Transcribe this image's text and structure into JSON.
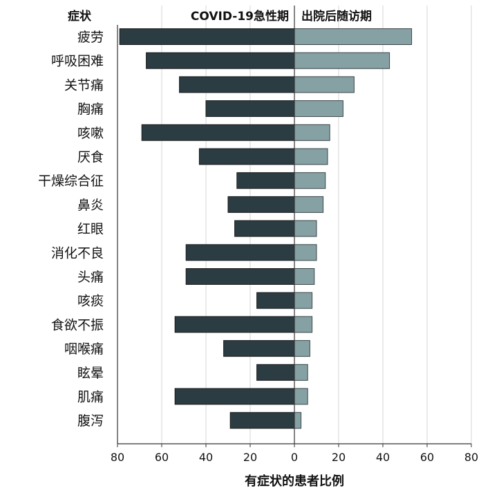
{
  "chart_data": {
    "type": "bar",
    "orientation": "horizontal-diverging",
    "category_header": "症状",
    "xlabel": "有症状的患者比例",
    "xlim": [
      -80,
      80
    ],
    "xticks": [
      -80,
      -60,
      -40,
      -20,
      0,
      20,
      40,
      60,
      80
    ],
    "xtick_labels": [
      "80",
      "60",
      "40",
      "20",
      "0",
      "20",
      "40",
      "60",
      "80"
    ],
    "grid": "vertical",
    "categories": [
      "疲劳",
      "呼吸困难",
      "关节痛",
      "胸痛",
      "咳嗽",
      "厌食",
      "干燥综合征",
      "鼻炎",
      "红眼",
      "消化不良",
      "头痛",
      "咳痰",
      "食欲不振",
      "咽喉痛",
      "眩晕",
      "肌痛",
      "腹泻"
    ],
    "series": [
      {
        "name": "COVID-19急性期",
        "side": "left",
        "color": "#2b3c42",
        "values": [
          79,
          67,
          52,
          40,
          69,
          43,
          26,
          30,
          27,
          49,
          49,
          17,
          54,
          32,
          17,
          54,
          29
        ]
      },
      {
        "name": "出院后随访期",
        "side": "right",
        "color": "#86a1a4",
        "values": [
          53,
          43,
          27,
          22,
          16,
          15,
          14,
          13,
          10,
          10,
          9,
          8,
          8,
          7,
          6,
          6,
          3
        ]
      }
    ]
  }
}
